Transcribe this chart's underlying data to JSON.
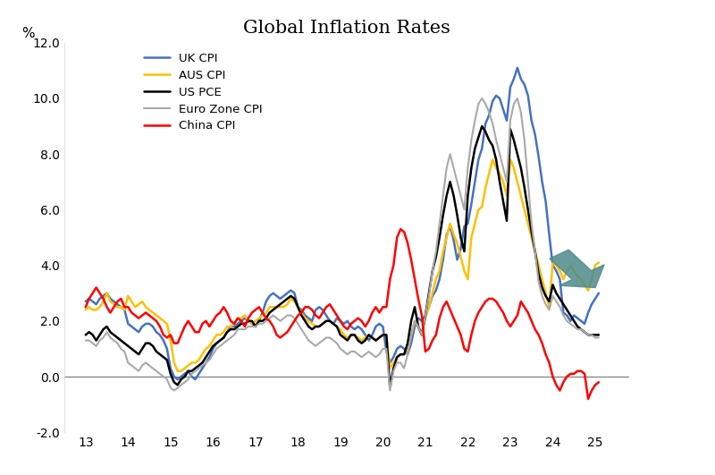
{
  "title": "Global Inflation Rates",
  "ylabel": "%",
  "ylim": [
    -2.0,
    12.0
  ],
  "yticks": [
    -2.0,
    0.0,
    2.0,
    4.0,
    6.0,
    8.0,
    10.0,
    12.0
  ],
  "xlim": [
    12.5,
    25.8
  ],
  "xticks": [
    13,
    14,
    15,
    16,
    17,
    18,
    19,
    20,
    21,
    22,
    23,
    24,
    25
  ],
  "background_color": "#ffffff",
  "title_fontsize": 15,
  "series": {
    "UK CPI": {
      "color": "#4472C4",
      "lw": 1.8
    },
    "AUS CPI": {
      "color": "#FFC000",
      "lw": 1.8
    },
    "US PCE": {
      "color": "#000000",
      "lw": 1.8
    },
    "Euro Zone CPI": {
      "color": "#A9A9A9",
      "lw": 1.5
    },
    "China CPI": {
      "color": "#FF0000",
      "lw": 1.8
    }
  },
  "arrow_color": "#4E8B8B",
  "t_monthly": [
    13.0,
    13.083,
    13.167,
    13.25,
    13.333,
    13.417,
    13.5,
    13.583,
    13.667,
    13.75,
    13.833,
    13.917,
    14.0,
    14.083,
    14.167,
    14.25,
    14.333,
    14.417,
    14.5,
    14.583,
    14.667,
    14.75,
    14.833,
    14.917,
    15.0,
    15.083,
    15.167,
    15.25,
    15.333,
    15.417,
    15.5,
    15.583,
    15.667,
    15.75,
    15.833,
    15.917,
    16.0,
    16.083,
    16.167,
    16.25,
    16.333,
    16.417,
    16.5,
    16.583,
    16.667,
    16.75,
    16.833,
    16.917,
    17.0,
    17.083,
    17.167,
    17.25,
    17.333,
    17.417,
    17.5,
    17.583,
    17.667,
    17.75,
    17.833,
    17.917,
    18.0,
    18.083,
    18.167,
    18.25,
    18.333,
    18.417,
    18.5,
    18.583,
    18.667,
    18.75,
    18.833,
    18.917,
    19.0,
    19.083,
    19.167,
    19.25,
    19.333,
    19.417,
    19.5,
    19.583,
    19.667,
    19.75,
    19.833,
    19.917,
    20.0,
    20.083,
    20.167,
    20.25,
    20.333,
    20.417,
    20.5,
    20.583,
    20.667,
    20.75,
    20.833,
    20.917,
    21.0,
    21.083,
    21.167,
    21.25,
    21.333,
    21.417,
    21.5,
    21.583,
    21.667,
    21.75,
    21.833,
    21.917,
    22.0,
    22.083,
    22.167,
    22.25,
    22.333,
    22.417,
    22.5,
    22.583,
    22.667,
    22.75,
    22.833,
    22.917,
    23.0,
    23.083,
    23.167,
    23.25,
    23.333,
    23.417,
    23.5,
    23.583,
    23.667,
    23.75,
    23.833,
    23.917,
    24.0,
    24.083,
    24.167,
    24.25,
    24.333,
    24.417,
    24.5,
    24.583,
    24.667,
    24.75,
    24.833,
    24.917,
    25.0,
    25.083
  ],
  "uk_cpi": [
    2.7,
    2.8,
    2.7,
    2.6,
    2.8,
    2.9,
    3.0,
    2.8,
    2.7,
    2.6,
    2.5,
    2.4,
    1.9,
    1.8,
    1.7,
    1.6,
    1.8,
    1.9,
    1.9,
    1.8,
    1.6,
    1.5,
    1.3,
    1.0,
    0.3,
    0.0,
    -0.1,
    0.0,
    0.1,
    0.2,
    0.0,
    -0.1,
    0.1,
    0.3,
    0.5,
    0.7,
    1.0,
    1.2,
    1.3,
    1.4,
    1.6,
    1.8,
    1.8,
    1.9,
    2.0,
    2.1,
    2.0,
    1.9,
    1.8,
    2.0,
    2.3,
    2.7,
    2.9,
    3.0,
    2.9,
    2.8,
    2.9,
    3.0,
    3.1,
    3.0,
    2.5,
    2.4,
    2.2,
    2.1,
    2.0,
    2.4,
    2.5,
    2.4,
    2.2,
    2.0,
    1.9,
    2.1,
    2.0,
    1.9,
    2.0,
    1.8,
    1.7,
    1.8,
    1.7,
    1.5,
    1.3,
    1.5,
    1.8,
    1.9,
    1.8,
    0.9,
    0.5,
    0.7,
    1.0,
    1.1,
    1.0,
    0.8,
    1.2,
    1.8,
    2.1,
    2.0,
    2.2,
    2.5,
    2.9,
    3.1,
    3.5,
    4.2,
    5.1,
    5.4,
    4.9,
    4.2,
    4.6,
    5.4,
    5.5,
    6.2,
    7.0,
    7.8,
    8.2,
    9.1,
    9.4,
    9.9,
    10.1,
    10.0,
    9.6,
    9.2,
    10.4,
    10.7,
    11.1,
    10.7,
    10.5,
    10.1,
    9.2,
    8.7,
    7.9,
    7.0,
    6.3,
    5.1,
    4.0,
    3.8,
    3.5,
    2.3,
    2.2,
    2.0,
    2.2,
    2.1,
    2.0,
    1.9,
    2.3,
    2.6,
    2.8,
    3.0
  ],
  "aus_cpi": [
    2.4,
    2.5,
    2.4,
    2.4,
    2.5,
    2.7,
    3.0,
    2.7,
    2.6,
    2.5,
    2.5,
    2.4,
    2.9,
    2.7,
    2.5,
    2.6,
    2.7,
    2.5,
    2.4,
    2.3,
    2.2,
    2.1,
    2.0,
    1.9,
    1.3,
    0.5,
    0.2,
    0.2,
    0.3,
    0.4,
    0.5,
    0.5,
    0.6,
    0.8,
    1.0,
    1.1,
    1.3,
    1.5,
    1.5,
    1.6,
    1.8,
    1.8,
    1.9,
    2.1,
    2.1,
    2.2,
    2.0,
    1.9,
    2.0,
    2.1,
    2.2,
    2.3,
    2.5,
    2.5,
    2.5,
    2.5,
    2.5,
    2.6,
    2.8,
    2.7,
    2.5,
    2.3,
    2.1,
    2.0,
    1.9,
    1.8,
    1.8,
    1.9,
    2.0,
    2.0,
    1.9,
    1.8,
    1.7,
    1.5,
    1.4,
    1.5,
    1.5,
    1.4,
    1.3,
    1.4,
    1.5,
    1.4,
    1.3,
    1.4,
    1.5,
    1.5,
    0.3,
    0.5,
    0.7,
    0.8,
    0.8,
    1.0,
    1.5,
    2.0,
    1.8,
    1.5,
    2.1,
    2.5,
    3.0,
    3.5,
    3.8,
    4.5,
    5.0,
    5.5,
    5.1,
    4.8,
    4.3,
    3.8,
    3.5,
    5.0,
    5.5,
    6.0,
    6.1,
    6.8,
    7.3,
    7.8,
    7.5,
    7.3,
    7.0,
    6.5,
    7.8,
    7.5,
    7.0,
    6.5,
    6.0,
    5.5,
    5.0,
    4.5,
    4.0,
    3.5,
    3.0,
    2.5,
    4.1,
    4.0,
    3.8,
    3.5,
    3.8,
    4.0,
    3.8,
    3.6,
    3.5,
    3.3,
    3.1,
    3.5,
    4.0,
    4.1
  ],
  "us_pce": [
    1.5,
    1.6,
    1.5,
    1.3,
    1.5,
    1.7,
    1.8,
    1.6,
    1.5,
    1.4,
    1.3,
    1.2,
    1.1,
    1.0,
    0.9,
    0.8,
    1.0,
    1.2,
    1.2,
    1.1,
    0.9,
    0.8,
    0.7,
    0.6,
    0.1,
    -0.2,
    -0.3,
    -0.1,
    0.0,
    0.2,
    0.2,
    0.3,
    0.4,
    0.5,
    0.7,
    0.9,
    1.1,
    1.2,
    1.3,
    1.4,
    1.6,
    1.7,
    1.7,
    1.8,
    1.9,
    1.9,
    2.0,
    2.0,
    1.8,
    2.0,
    2.0,
    2.1,
    2.3,
    2.4,
    2.5,
    2.6,
    2.7,
    2.8,
    2.9,
    2.8,
    2.5,
    2.2,
    2.0,
    1.8,
    1.7,
    1.8,
    1.8,
    1.9,
    2.0,
    2.0,
    1.9,
    1.8,
    1.5,
    1.4,
    1.3,
    1.5,
    1.5,
    1.3,
    1.2,
    1.3,
    1.5,
    1.4,
    1.3,
    1.4,
    1.5,
    1.5,
    -0.4,
    0.3,
    0.7,
    0.8,
    0.8,
    1.2,
    2.0,
    2.5,
    1.8,
    1.5,
    2.2,
    3.0,
    3.8,
    4.3,
    5.0,
    5.8,
    6.5,
    7.0,
    6.5,
    5.8,
    5.0,
    4.5,
    6.5,
    7.5,
    8.2,
    8.6,
    9.0,
    8.8,
    8.5,
    8.3,
    7.8,
    7.0,
    6.3,
    5.6,
    8.9,
    8.5,
    8.0,
    7.5,
    6.8,
    6.0,
    5.2,
    4.5,
    3.7,
    3.2,
    2.9,
    2.7,
    3.3,
    3.0,
    2.8,
    2.6,
    2.4,
    2.2,
    2.0,
    1.8,
    1.7,
    1.6,
    1.5,
    1.5,
    1.5,
    1.5
  ],
  "euro_cpi": [
    1.3,
    1.3,
    1.2,
    1.1,
    1.3,
    1.4,
    1.6,
    1.4,
    1.3,
    1.2,
    1.0,
    0.9,
    0.5,
    0.4,
    0.3,
    0.2,
    0.4,
    0.5,
    0.4,
    0.3,
    0.2,
    0.1,
    0.0,
    -0.1,
    -0.4,
    -0.5,
    -0.4,
    -0.3,
    -0.2,
    -0.1,
    0.1,
    0.2,
    0.3,
    0.4,
    0.5,
    0.6,
    0.8,
    1.0,
    1.1,
    1.2,
    1.3,
    1.4,
    1.5,
    1.7,
    1.7,
    1.7,
    1.8,
    1.8,
    1.8,
    1.9,
    1.9,
    2.0,
    2.1,
    2.2,
    2.1,
    2.0,
    2.1,
    2.2,
    2.2,
    2.1,
    1.9,
    1.7,
    1.5,
    1.3,
    1.2,
    1.1,
    1.2,
    1.3,
    1.4,
    1.4,
    1.3,
    1.2,
    1.0,
    0.9,
    0.8,
    0.9,
    0.9,
    0.8,
    0.7,
    0.8,
    0.9,
    0.8,
    0.7,
    0.8,
    1.0,
    1.0,
    -0.5,
    0.2,
    0.5,
    0.5,
    0.3,
    0.8,
    1.5,
    2.0,
    1.8,
    1.5,
    2.2,
    2.9,
    3.8,
    4.5,
    5.5,
    6.5,
    7.5,
    8.0,
    7.5,
    7.0,
    6.5,
    6.0,
    7.5,
    8.5,
    9.2,
    9.8,
    10.0,
    9.8,
    9.5,
    9.1,
    8.5,
    8.0,
    7.5,
    7.0,
    9.2,
    9.8,
    10.0,
    9.5,
    8.5,
    7.0,
    5.5,
    4.5,
    3.4,
    2.9,
    2.6,
    2.4,
    2.9,
    2.7,
    2.5,
    2.2,
    2.0,
    1.9,
    1.8,
    1.7,
    1.7,
    1.6,
    1.5,
    1.5,
    1.4,
    1.4
  ],
  "china_cpi": [
    2.5,
    2.8,
    3.0,
    3.2,
    3.0,
    2.8,
    2.5,
    2.3,
    2.5,
    2.7,
    2.8,
    2.5,
    2.5,
    2.3,
    2.2,
    2.1,
    2.2,
    2.3,
    2.2,
    2.1,
    2.0,
    1.8,
    1.5,
    1.4,
    1.5,
    1.2,
    1.2,
    1.5,
    1.8,
    2.0,
    1.8,
    1.6,
    1.6,
    1.9,
    2.0,
    1.8,
    2.0,
    2.2,
    2.3,
    2.5,
    2.3,
    2.0,
    1.9,
    2.1,
    2.0,
    1.8,
    2.1,
    2.3,
    2.4,
    2.5,
    2.3,
    2.1,
    2.0,
    1.8,
    1.5,
    1.4,
    1.5,
    1.6,
    1.8,
    2.0,
    2.2,
    2.3,
    2.5,
    2.5,
    2.4,
    2.2,
    2.1,
    2.3,
    2.5,
    2.6,
    2.4,
    2.2,
    2.0,
    1.8,
    1.7,
    1.9,
    2.0,
    2.1,
    2.0,
    1.8,
    2.0,
    2.3,
    2.5,
    2.3,
    2.5,
    2.5,
    3.5,
    4.0,
    5.0,
    5.3,
    5.2,
    4.8,
    4.2,
    3.5,
    2.8,
    2.2,
    0.9,
    1.0,
    1.3,
    1.5,
    2.1,
    2.5,
    2.7,
    2.4,
    2.1,
    1.8,
    1.5,
    1.0,
    0.9,
    1.5,
    2.0,
    2.3,
    2.5,
    2.7,
    2.8,
    2.8,
    2.7,
    2.5,
    2.3,
    2.0,
    1.8,
    2.0,
    2.2,
    2.7,
    2.5,
    2.3,
    2.0,
    1.7,
    1.5,
    1.2,
    0.8,
    0.5,
    0.0,
    -0.3,
    -0.5,
    -0.2,
    0.0,
    0.1,
    0.1,
    0.2,
    0.2,
    0.1,
    -0.8,
    -0.5,
    -0.3,
    -0.2
  ]
}
